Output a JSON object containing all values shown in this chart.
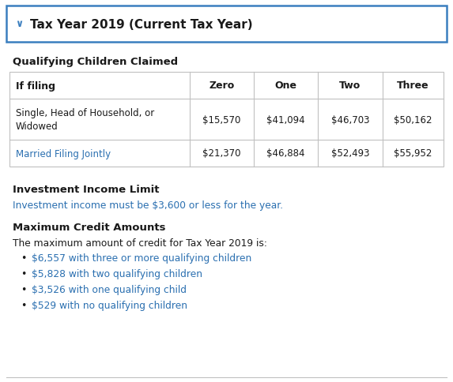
{
  "title": "Tax Year 2019 (Current Tax Year)",
  "title_color": "#1a1a1a",
  "header_border_color": "#3a7ebf",
  "section_label": "Qualifying Children Claimed",
  "table_headers": [
    "If filing",
    "Zero",
    "One",
    "Two",
    "Three"
  ],
  "table_row1_col0": "Single, Head of Household, or\nWidowed",
  "table_row1_vals": [
    "$15,570",
    "$41,094",
    "$46,703",
    "$50,162"
  ],
  "table_row2_label": "Married Filing Jointly",
  "table_row2_label_color": "#2a6fb0",
  "table_row2_values": [
    "$21,370",
    "$46,884",
    "$52,493",
    "$55,952"
  ],
  "investment_title": "Investment Income Limit",
  "investment_text": "Investment income must be $3,600 or less for the year.",
  "investment_text_color": "#2a6fb0",
  "credit_title": "Maximum Credit Amounts",
  "credit_intro": "The maximum amount of credit for Tax Year 2019 is:",
  "bullet_items": [
    "$6,557 with three or more qualifying children",
    "$5,828 with two qualifying children",
    "$3,526 with one qualifying child",
    "$529 with no qualifying children"
  ],
  "bullet_color": "#2a6fb0",
  "bg_color": "#ffffff",
  "border_color": "#c0c0c0",
  "text_color": "#1a1a1a"
}
